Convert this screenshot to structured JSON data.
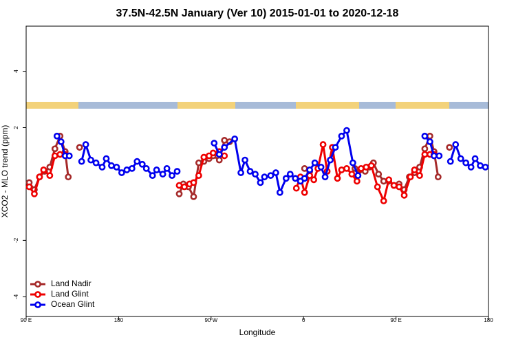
{
  "chart_data": {
    "type": "line",
    "title": "37.5N-42.5N January (Ver 10)   2015-01-01 to 2020-12-18",
    "x_label": "Longitude",
    "y_label": "XCO2 - MLO trend (ppm)",
    "xlim": [
      90,
      540
    ],
    "ylim": [
      -4.7,
      5.6
    ],
    "xticks": [
      {
        "value": 90,
        "label": "90 E"
      },
      180,
      {
        "value": 270,
        "label": "90 W"
      },
      {
        "value": 360,
        "label": "0"
      },
      {
        "value": 450,
        "label": "90 E"
      },
      {
        "value": 540,
        "label": "180"
      }
    ],
    "yticks": [
      -4,
      -2,
      2,
      4
    ],
    "grid": false,
    "legend": "bottomleft",
    "series": [
      {
        "name": "Land Nadir",
        "color": "#a52a2a",
        "x": [
          93,
          98,
          103,
          108,
          113,
          118,
          123,
          128,
          131,
          137,
          142,
          190,
          239,
          243,
          248,
          253,
          258,
          263,
          268,
          272,
          278,
          283,
          288,
          320,
          361,
          366,
          390,
          410,
          415,
          420,
          424,
          428,
          433,
          438,
          443,
          448,
          453,
          458,
          463,
          468,
          473,
          478,
          483,
          487,
          491,
          497,
          502
        ],
        "values": [
          0.05,
          -0.2,
          0.25,
          0.45,
          0.6,
          1.25,
          1.7,
          1.15,
          0.25,
          null,
          1.3,
          null,
          -0.35,
          0,
          -0.1,
          -0.45,
          0.75,
          0.8,
          0.9,
          1.0,
          0.85,
          1.55,
          1.5,
          null,
          0.55,
          0.45,
          null,
          0.55,
          0.5,
          0.45,
          0.6,
          0.75,
          0.35,
          0.1,
          0.1,
          -0.05,
          0,
          -0.2,
          0.25,
          0.4,
          0.6,
          1.25,
          1.7,
          1.15,
          0.25,
          null,
          1.3
        ]
      },
      {
        "name": "Land Glint",
        "color": "#ee0000",
        "x": [
          93,
          98,
          103,
          107,
          113,
          118,
          123,
          128,
          180,
          239,
          244,
          249,
          253,
          258,
          263,
          268,
          272,
          278,
          283,
          320,
          353,
          357,
          361,
          366,
          370,
          374,
          379,
          383,
          388,
          393,
          397,
          402,
          407,
          412,
          416,
          421,
          426,
          432,
          438,
          443,
          448,
          453,
          458,
          464,
          468,
          473,
          478,
          483,
          487
        ],
        "values": [
          -0.1,
          -0.35,
          0.25,
          0.5,
          0.3,
          1.0,
          1.05,
          1.05,
          null,
          -0.05,
          -0.1,
          0,
          0.05,
          0.3,
          0.95,
          1.0,
          1.1,
          1.15,
          1.0,
          null,
          -0.15,
          0.25,
          -0.3,
          0.3,
          0.15,
          0.55,
          1.4,
          0.45,
          1.3,
          0.2,
          0.5,
          0.55,
          0.35,
          0.1,
          0.55,
          0.6,
          0.65,
          -0.1,
          -0.6,
          0.15,
          -0.05,
          -0.1,
          -0.4,
          0.25,
          0.5,
          0.3,
          1.05,
          1.05,
          1.05
        ]
      },
      {
        "name": "Ocean Glint",
        "color": "#0000ee",
        "x": [
          120,
          124,
          128,
          132,
          138,
          144,
          148,
          153,
          158,
          164,
          168,
          173,
          178,
          183,
          188,
          193,
          198,
          203,
          207,
          213,
          217,
          223,
          227,
          232,
          237,
          255,
          273,
          278,
          283,
          293,
          299,
          303,
          308,
          313,
          318,
          322,
          328,
          333,
          337,
          343,
          347,
          352,
          357,
          361,
          366,
          371,
          377,
          381,
          386,
          391,
          397,
          402,
          408,
          413,
          445,
          478,
          483,
          487,
          492,
          498,
          503,
          508,
          513,
          518,
          523,
          527,
          532,
          537
        ],
        "values": [
          1.7,
          1.5,
          1.0,
          1.0,
          null,
          0.8,
          1.4,
          0.85,
          0.75,
          0.6,
          0.9,
          0.65,
          0.6,
          0.4,
          0.5,
          0.55,
          0.8,
          0.7,
          0.55,
          0.3,
          0.5,
          0.35,
          0.55,
          0.3,
          0.45,
          null,
          1.45,
          1.05,
          1.3,
          1.6,
          0.4,
          0.85,
          0.45,
          0.35,
          0.05,
          0.25,
          0.3,
          0.4,
          -0.3,
          0.2,
          0.35,
          0.2,
          0.1,
          0.2,
          0.5,
          0.75,
          0.6,
          0.25,
          0.85,
          1.3,
          1.7,
          1.9,
          0.75,
          0.3,
          null,
          1.7,
          1.5,
          1.0,
          1.0,
          null,
          0.8,
          1.4,
          0.9,
          0.75,
          0.6,
          0.9,
          0.65,
          0.6
        ]
      }
    ]
  }
}
